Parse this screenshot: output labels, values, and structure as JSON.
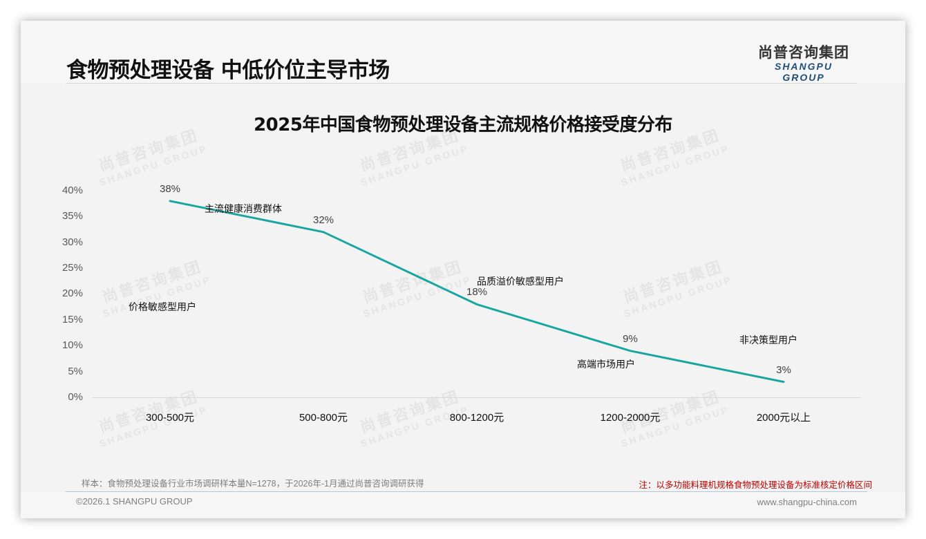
{
  "header": {
    "page_title": "食物预处理设备 中低价位主导市场",
    "logo_cn": "尚普咨询集团",
    "logo_en": "SHANGPU GROUP"
  },
  "watermark": {
    "cn": "尚普咨询集团",
    "en": "SHANGPU GROUP"
  },
  "chart_data": {
    "type": "line",
    "title": "2025年中国食物预处理设备主流规格价格接受度分布",
    "categories": [
      "300-500元",
      "500-800元",
      "800-1200元",
      "1200-2000元",
      "2000元以上"
    ],
    "values": [
      38,
      32,
      18,
      9,
      3
    ],
    "value_labels": [
      "38%",
      "32%",
      "18%",
      "9%",
      "3%"
    ],
    "series": [
      {
        "name": "价格接受度",
        "values": [
          38,
          32,
          18,
          9,
          3
        ],
        "color": "#1aa6a0"
      }
    ],
    "y_ticks": [
      "0%",
      "5%",
      "10%",
      "15%",
      "20%",
      "25%",
      "30%",
      "35%",
      "40%"
    ],
    "ylim": [
      0,
      40
    ],
    "xlabel": "",
    "ylabel": "",
    "grid": false,
    "legend": "none",
    "annotations": [
      {
        "text": "价格敏感型用户",
        "category": "300-500元"
      },
      {
        "text": "主流健康消费群体",
        "category": "500-800元"
      },
      {
        "text": "品质溢价敏感型用户",
        "category": "800-1200元"
      },
      {
        "text": "高端市场用户",
        "category": "1200-2000元"
      },
      {
        "text": "非决策型用户",
        "category": "2000元以上"
      }
    ]
  },
  "footer": {
    "sample_note": "样本：食物预处理设备行业市场调研样本量N=1278，于2026年-1月通过尚普咨询调研获得",
    "red_note": "注：以多功能料理机规格食物预处理设备为标准核定价格区间",
    "copyright": "©2026.1 SHANGPU GROUP",
    "website": "www.shangpu-china.com"
  }
}
